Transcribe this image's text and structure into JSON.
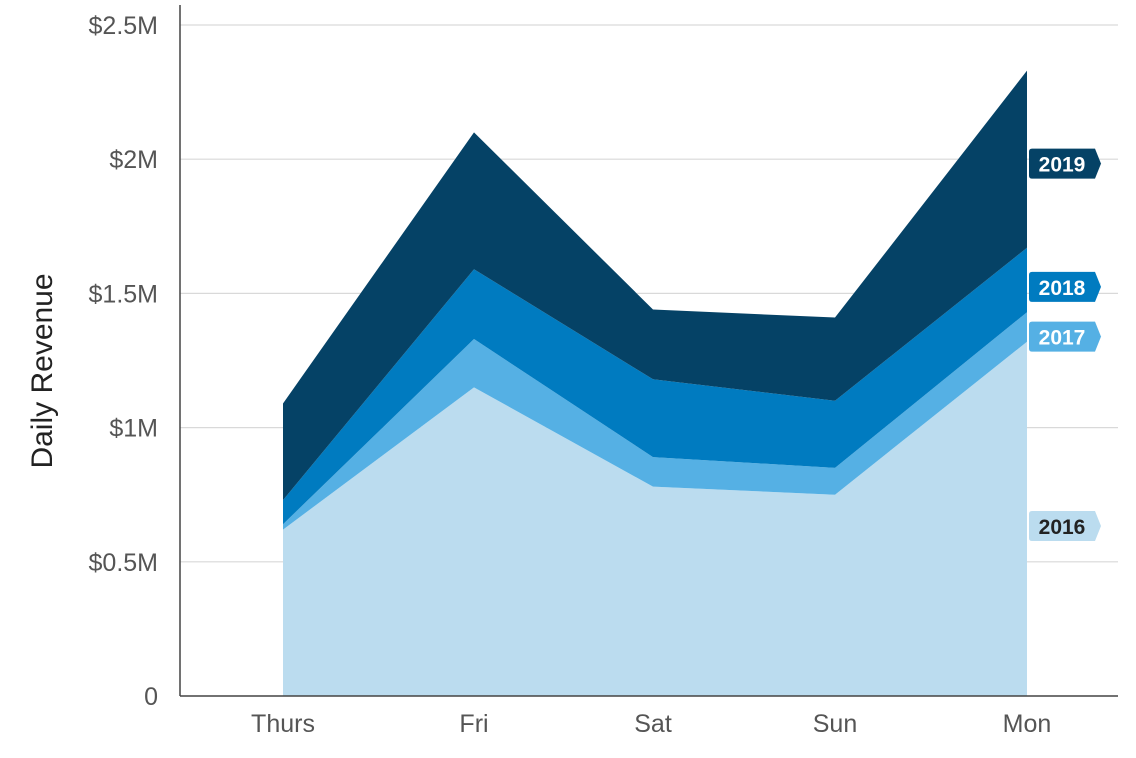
{
  "chart_data": {
    "type": "area",
    "stacked": true,
    "title": "",
    "xlabel": "",
    "ylabel": "Daily Revenue",
    "categories": [
      "Thurs",
      "Fri",
      "Sat",
      "Sun",
      "Mon"
    ],
    "ylim": [
      0,
      2500000
    ],
    "yticks": [
      0,
      500000,
      1000000,
      1500000,
      2000000,
      2500000
    ],
    "ytick_labels": [
      "0",
      "$0.5M",
      "$1M",
      "$1.5M",
      "$2M",
      "$2.5M"
    ],
    "grid": true,
    "legend": "inline labels at right end of each series",
    "series": [
      {
        "name": "2016",
        "values": [
          620000,
          1150000,
          780000,
          750000,
          1320000
        ],
        "color": "#bbdcef",
        "label_text_color": "#222222"
      },
      {
        "name": "2017",
        "values": [
          20000,
          180000,
          110000,
          100000,
          110000
        ],
        "color": "#55b0e4",
        "label_text_color": "#ffffff"
      },
      {
        "name": "2018",
        "values": [
          90000,
          260000,
          290000,
          250000,
          240000
        ],
        "color": "#007bc0",
        "label_text_color": "#ffffff"
      },
      {
        "name": "2019",
        "values": [
          360000,
          510000,
          260000,
          310000,
          660000
        ],
        "color": "#054266",
        "label_text_color": "#ffffff"
      }
    ]
  }
}
